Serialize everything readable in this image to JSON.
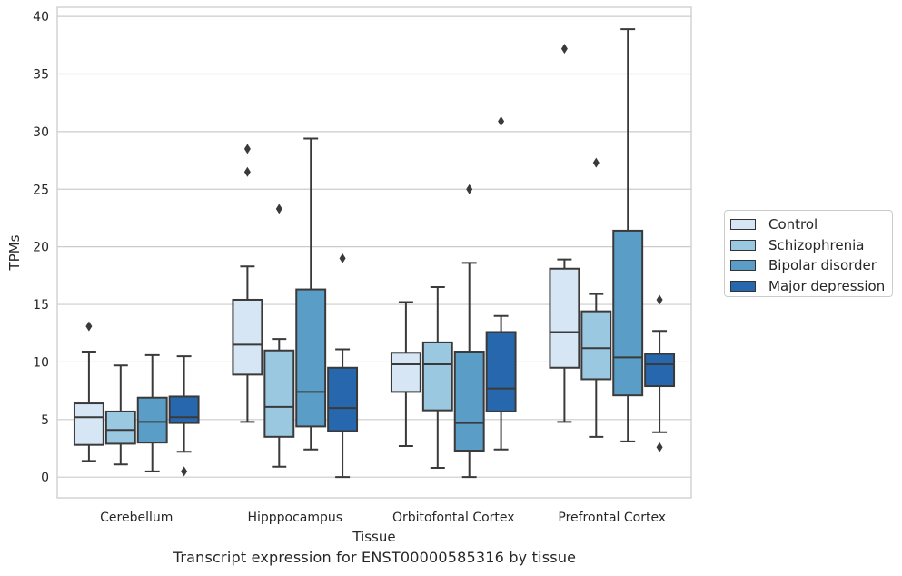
{
  "chart_data": {
    "type": "box",
    "xlabel": "Tissue",
    "ylabel": "TPMs",
    "caption": "Transcript expression for ENST00000585316 by tissue",
    "ylim": [
      -1.8,
      40.8
    ],
    "yticks": [
      0,
      5,
      10,
      15,
      20,
      25,
      30,
      35,
      40
    ],
    "grid": "horizontal",
    "legend_position": "right",
    "categories": [
      "Cerebellum",
      "Hipppocampus",
      "Orbitofontal Cortex",
      "Prefrontal Cortex"
    ],
    "series": [
      {
        "name": "Control",
        "color": "#d6e6f4",
        "boxes": [
          {
            "whisker_low": 1.4,
            "q1": 2.8,
            "median": 5.2,
            "q3": 6.4,
            "whisker_high": 10.9,
            "outliers": [
              13.1
            ]
          },
          {
            "whisker_low": 4.8,
            "q1": 8.9,
            "median": 11.5,
            "q3": 15.4,
            "whisker_high": 18.3,
            "outliers": [
              26.5,
              28.5
            ]
          },
          {
            "whisker_low": 2.7,
            "q1": 7.4,
            "median": 9.8,
            "q3": 10.8,
            "whisker_high": 15.2,
            "outliers": []
          },
          {
            "whisker_low": 4.8,
            "q1": 9.5,
            "median": 12.6,
            "q3": 18.1,
            "whisker_high": 18.9,
            "outliers": [
              37.2
            ]
          }
        ]
      },
      {
        "name": "Schizophrenia",
        "color": "#9ac8e0",
        "boxes": [
          {
            "whisker_low": 1.1,
            "q1": 2.9,
            "median": 4.1,
            "q3": 5.7,
            "whisker_high": 9.7,
            "outliers": []
          },
          {
            "whisker_low": 0.9,
            "q1": 3.5,
            "median": 6.1,
            "q3": 11.0,
            "whisker_high": 12.0,
            "outliers": [
              23.3
            ]
          },
          {
            "whisker_low": 0.8,
            "q1": 5.8,
            "median": 9.8,
            "q3": 11.7,
            "whisker_high": 16.5,
            "outliers": []
          },
          {
            "whisker_low": 3.5,
            "q1": 8.5,
            "median": 11.2,
            "q3": 14.4,
            "whisker_high": 15.9,
            "outliers": [
              27.3
            ]
          }
        ]
      },
      {
        "name": "Bipolar disorder",
        "color": "#5a9ec8",
        "boxes": [
          {
            "whisker_low": 0.5,
            "q1": 3.0,
            "median": 4.8,
            "q3": 6.9,
            "whisker_high": 10.6,
            "outliers": []
          },
          {
            "whisker_low": 2.4,
            "q1": 4.4,
            "median": 7.4,
            "q3": 16.3,
            "whisker_high": 29.4,
            "outliers": []
          },
          {
            "whisker_low": 0.0,
            "q1": 2.3,
            "median": 4.7,
            "q3": 10.9,
            "whisker_high": 18.6,
            "outliers": [
              25.0
            ]
          },
          {
            "whisker_low": 3.1,
            "q1": 7.1,
            "median": 10.4,
            "q3": 21.4,
            "whisker_high": 38.9,
            "outliers": []
          }
        ]
      },
      {
        "name": "Major depression",
        "color": "#2767ad",
        "boxes": [
          {
            "whisker_low": 2.2,
            "q1": 4.7,
            "median": 5.2,
            "q3": 7.0,
            "whisker_high": 10.5,
            "outliers": [
              0.5
            ]
          },
          {
            "whisker_low": 0.0,
            "q1": 4.0,
            "median": 6.0,
            "q3": 9.5,
            "whisker_high": 11.1,
            "outliers": [
              19.0
            ]
          },
          {
            "whisker_low": 2.4,
            "q1": 5.7,
            "median": 7.7,
            "q3": 12.6,
            "whisker_high": 14.0,
            "outliers": [
              30.9
            ]
          },
          {
            "whisker_low": 3.9,
            "q1": 7.9,
            "median": 9.8,
            "q3": 10.7,
            "whisker_high": 12.7,
            "outliers": [
              2.6,
              15.4
            ]
          }
        ]
      }
    ]
  }
}
